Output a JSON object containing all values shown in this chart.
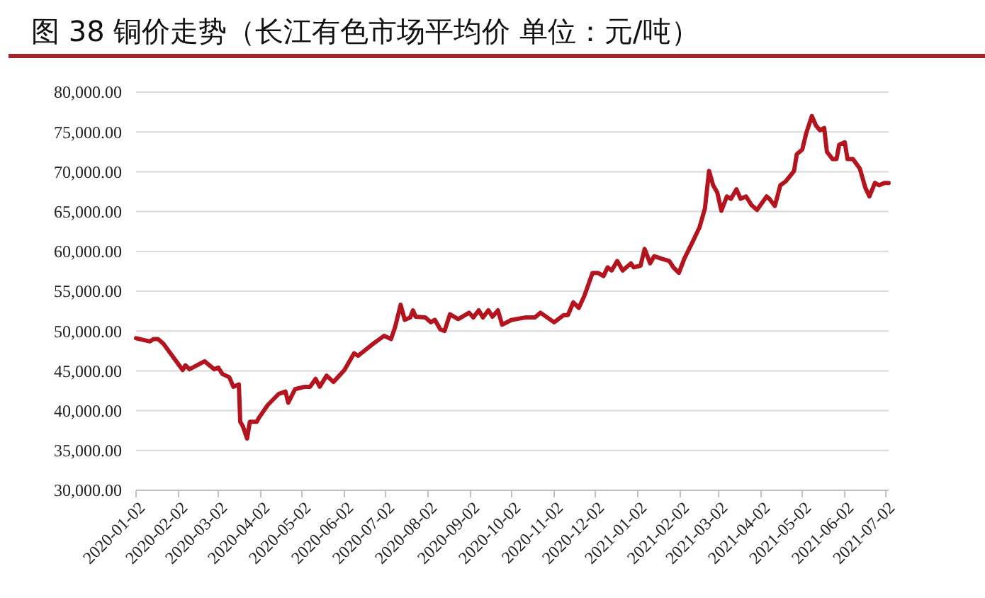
{
  "chart_data": {
    "type": "line",
    "title": "图 38  铜价走势（长江有色市场平均价  单位：元/吨）",
    "x": [
      "2020-01-02",
      "2020-01-12",
      "2020-01-15",
      "2020-01-18",
      "2020-01-22",
      "2020-02-05",
      "2020-02-07",
      "2020-02-10",
      "2020-02-21",
      "2020-02-28",
      "2020-03-02",
      "2020-03-05",
      "2020-03-10",
      "2020-03-13",
      "2020-03-17",
      "2020-03-18",
      "2020-03-20",
      "2020-03-23",
      "2020-03-25",
      "2020-03-30",
      "2020-04-01",
      "2020-04-07",
      "2020-04-15",
      "2020-04-20",
      "2020-04-22",
      "2020-04-27",
      "2020-05-04",
      "2020-05-08",
      "2020-05-12",
      "2020-05-15",
      "2020-05-20",
      "2020-05-25",
      "2020-06-02",
      "2020-06-09",
      "2020-06-12",
      "2020-06-23",
      "2020-07-01",
      "2020-07-06",
      "2020-07-09",
      "2020-07-13",
      "2020-07-16",
      "2020-07-20",
      "2020-07-22",
      "2020-07-24",
      "2020-07-31",
      "2020-08-04",
      "2020-08-07",
      "2020-08-11",
      "2020-08-14",
      "2020-08-18",
      "2020-08-24",
      "2020-09-01",
      "2020-09-04",
      "2020-09-08",
      "2020-09-11",
      "2020-09-15",
      "2020-09-18",
      "2020-09-22",
      "2020-09-25",
      "2020-10-02",
      "2020-10-12",
      "2020-10-19",
      "2020-10-23",
      "2020-10-28",
      "2020-11-02",
      "2020-11-09",
      "2020-11-12",
      "2020-11-16",
      "2020-11-20",
      "2020-11-24",
      "2020-11-30",
      "2020-12-04",
      "2020-12-08",
      "2020-12-11",
      "2020-12-14",
      "2020-12-18",
      "2020-12-22",
      "2020-12-28",
      "2020-12-30",
      "2021-01-04",
      "2021-01-07",
      "2021-01-11",
      "2021-01-14",
      "2021-01-19",
      "2021-01-25",
      "2021-01-28",
      "2021-02-01",
      "2021-02-05",
      "2021-02-11",
      "2021-02-16",
      "2021-02-20",
      "2021-02-23",
      "2021-02-26",
      "2021-03-01",
      "2021-03-04",
      "2021-03-08",
      "2021-03-11",
      "2021-03-15",
      "2021-03-18",
      "2021-03-22",
      "2021-03-26",
      "2021-03-30",
      "2021-04-06",
      "2021-04-08",
      "2021-04-12",
      "2021-04-16",
      "2021-04-20",
      "2021-04-26",
      "2021-04-28",
      "2021-05-02",
      "2021-05-05",
      "2021-05-09",
      "2021-05-12",
      "2021-05-15",
      "2021-05-18",
      "2021-05-20",
      "2021-05-24",
      "2021-05-27",
      "2021-05-29",
      "2021-06-02",
      "2021-06-04",
      "2021-06-08",
      "2021-06-13",
      "2021-06-17",
      "2021-06-20",
      "2021-06-24",
      "2021-06-27",
      "2021-07-01",
      "2021-07-04"
    ],
    "series": [
      {
        "color": "#b3141e",
        "values": [
          49100,
          48700,
          49000,
          49000,
          48400,
          45100,
          45700,
          45200,
          46200,
          45200,
          45400,
          44600,
          44200,
          43000,
          43300,
          38600,
          38000,
          36500,
          38600,
          38600,
          39200,
          40700,
          42100,
          42400,
          41000,
          42700,
          43000,
          43000,
          44000,
          43000,
          44400,
          43600,
          45100,
          47200,
          46900,
          48400,
          49400,
          49000,
          50500,
          53300,
          51400,
          51700,
          52600,
          51800,
          51700,
          51100,
          51400,
          50200,
          50000,
          52100,
          51500,
          52300,
          51700,
          52600,
          51700,
          52600,
          51800,
          52600,
          50800,
          51400,
          51700,
          51700,
          52300,
          51700,
          51100,
          52000,
          52000,
          53600,
          52900,
          54400,
          57300,
          57300,
          56900,
          58000,
          57600,
          58800,
          57600,
          58500,
          58000,
          58200,
          60300,
          58500,
          59400,
          59100,
          58800,
          58000,
          57300,
          59100,
          61200,
          63000,
          65400,
          70100,
          68300,
          67400,
          65100,
          66900,
          66600,
          67800,
          66600,
          66900,
          65800,
          65200,
          66900,
          66600,
          65700,
          68300,
          68800,
          70100,
          72200,
          72800,
          74900,
          77000,
          75800,
          75200,
          75500,
          72500,
          71600,
          71600,
          73400,
          73700,
          71600,
          71600,
          70400,
          68000,
          66900,
          68600,
          68300,
          68600,
          68600
        ]
      }
    ],
    "xlim": [
      "2020-01-02",
      "2021-07-04"
    ],
    "xticks": [
      "2020-01-02",
      "2020-02-02",
      "2020-03-02",
      "2020-04-02",
      "2020-05-02",
      "2020-06-02",
      "2020-07-02",
      "2020-08-02",
      "2020-09-02",
      "2020-10-02",
      "2020-11-02",
      "2020-12-02",
      "2021-01-02",
      "2021-02-02",
      "2021-03-02",
      "2021-04-02",
      "2021-05-02",
      "2021-06-02",
      "2021-07-02"
    ],
    "ylim": [
      30000,
      80000
    ],
    "yticks": [
      {
        "value": 30000,
        "label": "30,000.00"
      },
      {
        "value": 35000,
        "label": "35,000.00"
      },
      {
        "value": 40000,
        "label": "40,000.00"
      },
      {
        "value": 45000,
        "label": "45,000.00"
      },
      {
        "value": 50000,
        "label": "50,000.00"
      },
      {
        "value": 55000,
        "label": "55,000.00"
      },
      {
        "value": 60000,
        "label": "60,000.00"
      },
      {
        "value": 65000,
        "label": "65,000.00"
      },
      {
        "value": 70000,
        "label": "70,000.00"
      },
      {
        "value": 75000,
        "label": "75,000.00"
      },
      {
        "value": 80000,
        "label": "80,000.00"
      }
    ],
    "grid": "y"
  }
}
